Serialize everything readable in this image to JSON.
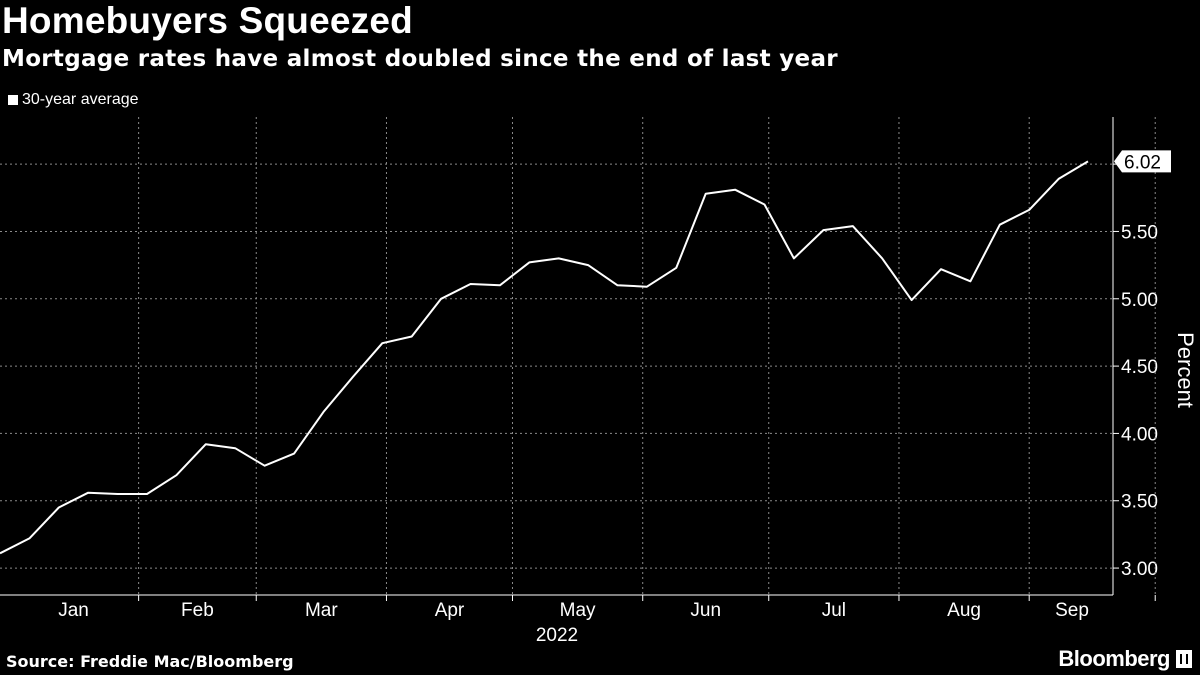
{
  "header": {
    "title": "Homebuyers Squeezed",
    "subtitle": "Mortgage rates have almost doubled since the end of last year"
  },
  "legend": {
    "label": "30-year average"
  },
  "footer": {
    "source": "Source: Freddie Mac/Bloomberg",
    "brand": "Bloomberg"
  },
  "colors": {
    "background": "#000000",
    "line": "#ffffff",
    "grid": "#8a8a8a"
  },
  "chart_data": {
    "type": "line",
    "title": "Homebuyers Squeezed",
    "subtitle": "Mortgage rates have almost doubled since the end of last year",
    "xlabel": "2022",
    "ylabel": "Percent",
    "ylim": [
      2.8,
      6.35
    ],
    "yticks": [
      "3.00",
      "3.50",
      "4.00",
      "4.50",
      "5.00",
      "5.50"
    ],
    "month_labels": [
      "Jan",
      "Feb",
      "Mar",
      "Apr",
      "May",
      "Jun",
      "Jul",
      "Aug",
      "Sep"
    ],
    "week_start": "2021-12-30",
    "last_value_label": "6.02",
    "grid": true,
    "series": [
      {
        "name": "30-year average",
        "values": [
          3.11,
          3.22,
          3.45,
          3.56,
          3.55,
          3.55,
          3.69,
          3.92,
          3.89,
          3.76,
          3.85,
          4.16,
          4.42,
          4.67,
          4.72,
          5.0,
          5.11,
          5.1,
          5.27,
          5.3,
          5.25,
          5.1,
          5.09,
          5.23,
          5.78,
          5.81,
          5.7,
          5.3,
          5.51,
          5.54,
          5.3,
          4.99,
          5.22,
          5.13,
          5.55,
          5.66,
          5.89,
          6.02
        ]
      }
    ]
  }
}
